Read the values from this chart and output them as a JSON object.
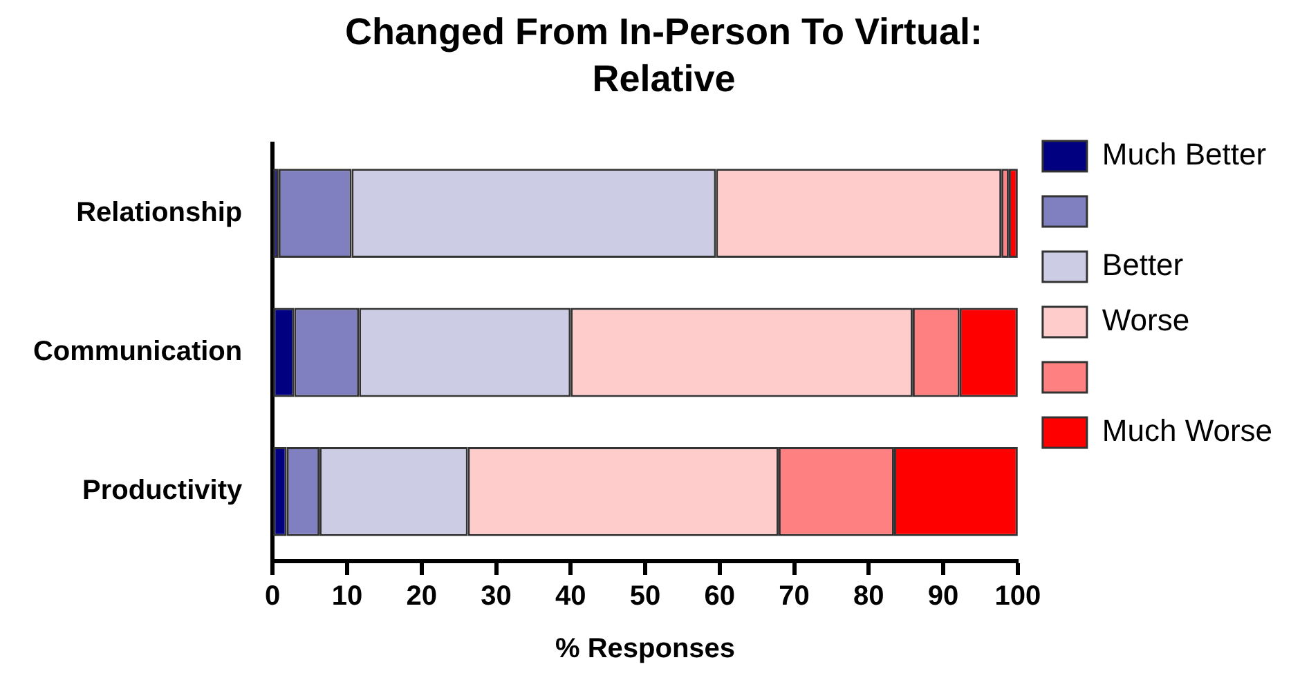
{
  "chart_data": {
    "type": "bar",
    "orientation": "horizontal",
    "stacked": true,
    "title": "Changed From In-Person To Virtual: Relative",
    "xlabel": "% Responses",
    "categories": [
      "Relationship",
      "Communication",
      "Productivity"
    ],
    "series": [
      {
        "name": "Much Better",
        "color": "#000080",
        "values": [
          0.8,
          2.9,
          1.9
        ]
      },
      {
        "color": "#8080c0",
        "values": [
          9.8,
          8.7,
          4.4
        ]
      },
      {
        "name": "Better",
        "color": "#cccce5",
        "values": [
          48.9,
          28.4,
          19.9
        ]
      },
      {
        "name": "Worse",
        "color": "#ffcccc",
        "values": [
          38.3,
          45.9,
          41.7
        ]
      },
      {
        "color": "#ff8080",
        "values": [
          1.0,
          6.3,
          15.5
        ]
      },
      {
        "name": "Much Worse",
        "color": "#ff0000",
        "values": [
          1.2,
          7.8,
          16.6
        ]
      }
    ],
    "xlim": [
      0,
      100
    ],
    "xticks": [
      0,
      10,
      20,
      30,
      40,
      50,
      60,
      70,
      80,
      90,
      100
    ],
    "grid": false,
    "legend": "right"
  }
}
